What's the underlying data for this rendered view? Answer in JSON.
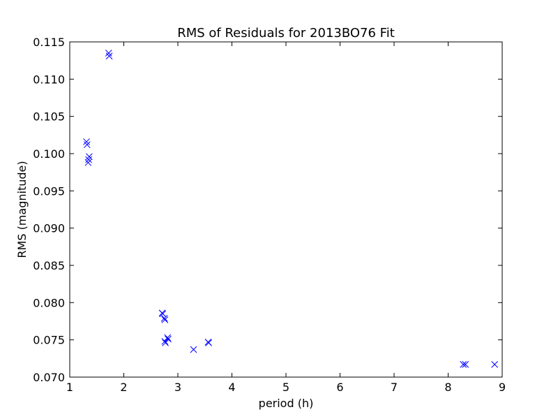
{
  "chart_data": {
    "type": "scatter",
    "title": "RMS of Residuals for 2013BO76 Fit",
    "xlabel": "period (h)",
    "ylabel": "RMS (magnitude)",
    "xlim": [
      1,
      9
    ],
    "ylim": [
      0.07,
      0.115
    ],
    "x_ticks": [
      "1",
      "2",
      "3",
      "4",
      "5",
      "6",
      "7",
      "8",
      "9"
    ],
    "y_ticks": [
      "0.070",
      "0.075",
      "0.080",
      "0.085",
      "0.090",
      "0.095",
      "0.100",
      "0.105",
      "0.110",
      "0.115"
    ],
    "grid": false,
    "marker": "x",
    "color": "#0000ff",
    "points": [
      {
        "x": 1.72,
        "y": 0.1135
      },
      {
        "x": 1.73,
        "y": 0.1131
      },
      {
        "x": 1.31,
        "y": 0.1016
      },
      {
        "x": 1.32,
        "y": 0.1012
      },
      {
        "x": 1.36,
        "y": 0.0996
      },
      {
        "x": 1.35,
        "y": 0.0992
      },
      {
        "x": 1.34,
        "y": 0.0988
      },
      {
        "x": 2.71,
        "y": 0.0786
      },
      {
        "x": 2.72,
        "y": 0.0785
      },
      {
        "x": 2.75,
        "y": 0.0779
      },
      {
        "x": 2.76,
        "y": 0.0777
      },
      {
        "x": 2.81,
        "y": 0.0753
      },
      {
        "x": 2.82,
        "y": 0.0751
      },
      {
        "x": 2.76,
        "y": 0.0748
      },
      {
        "x": 2.77,
        "y": 0.0746
      },
      {
        "x": 3.29,
        "y": 0.0737
      },
      {
        "x": 3.56,
        "y": 0.0747
      },
      {
        "x": 3.57,
        "y": 0.0746
      },
      {
        "x": 8.28,
        "y": 0.0717
      },
      {
        "x": 8.32,
        "y": 0.0717
      },
      {
        "x": 8.86,
        "y": 0.0717
      }
    ]
  }
}
